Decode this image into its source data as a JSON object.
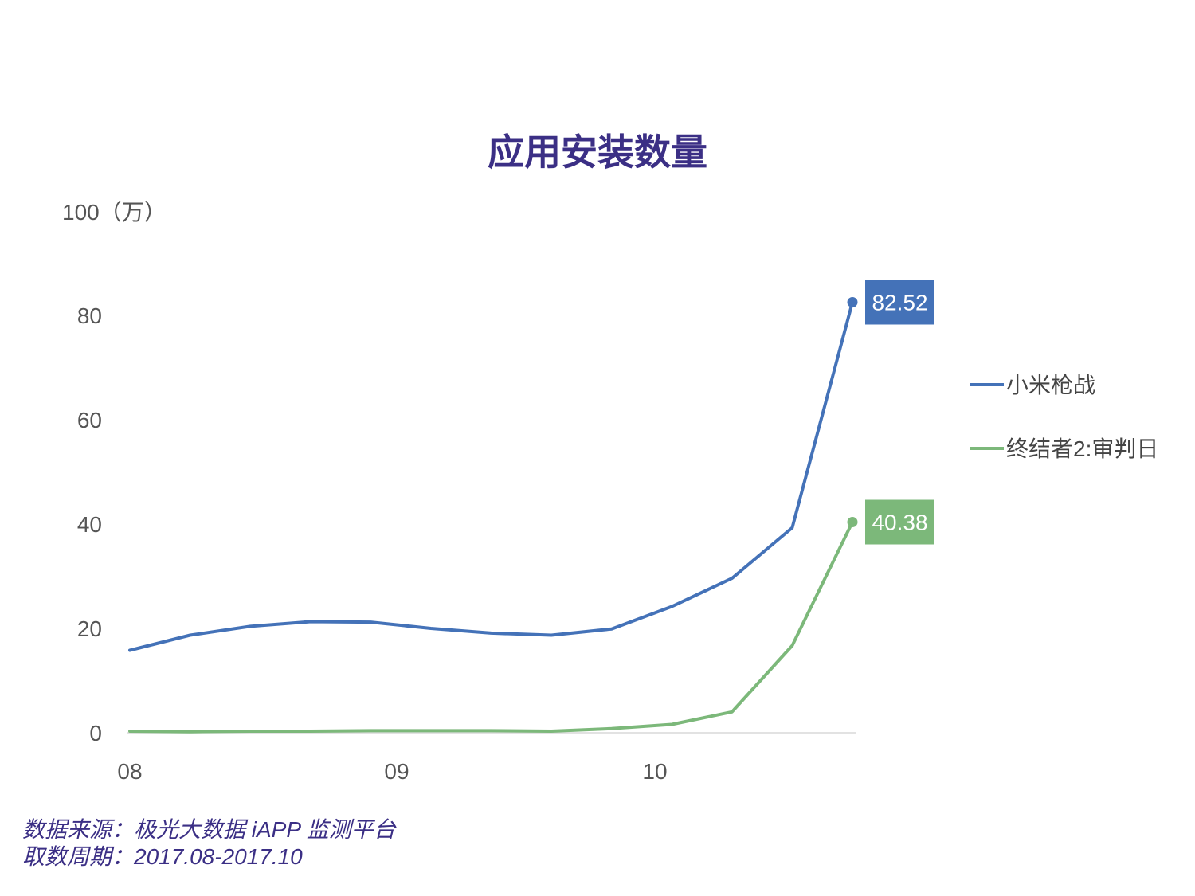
{
  "chart_data": {
    "type": "line",
    "title": "应用安装数量",
    "ylabel": "100（万）",
    "ylim": [
      0,
      100
    ],
    "y_ticks": [
      0,
      20,
      40,
      60,
      80
    ],
    "x_ticks": [
      "08",
      "09",
      "10"
    ],
    "series": [
      {
        "name": "小米枪战",
        "color": "#4472b8",
        "values": [
          15.8,
          18.7,
          20.4,
          21.3,
          21.2,
          20.0,
          19.1,
          18.7,
          19.9,
          24.2,
          29.6,
          39.3,
          82.52
        ],
        "end_label": "82.52"
      },
      {
        "name": "终结者2:审判日",
        "color": "#7cb87a",
        "values": [
          0.3,
          0.2,
          0.3,
          0.3,
          0.4,
          0.4,
          0.4,
          0.3,
          0.8,
          1.6,
          4.0,
          16.7,
          40.38
        ],
        "end_label": "40.38"
      }
    ],
    "legend": "right"
  },
  "footer": {
    "source": "数据来源：极光大数据 iAPP 监测平台",
    "period": "取数周期：2017.08-2017.10"
  }
}
